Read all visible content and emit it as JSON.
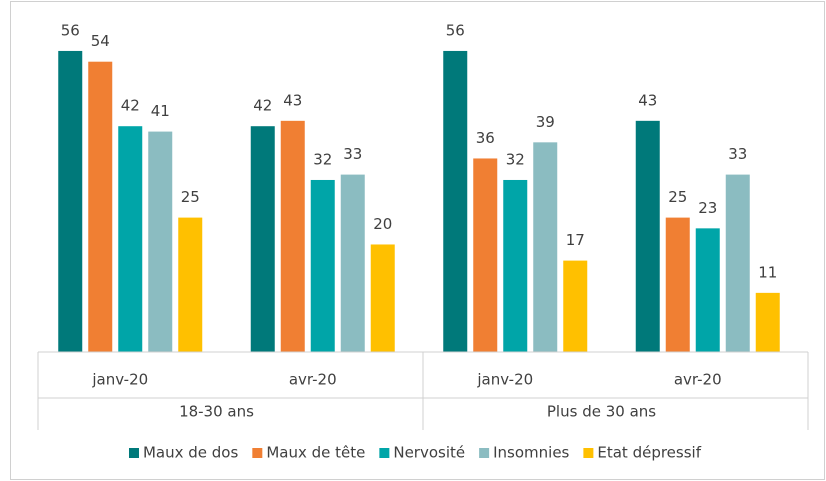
{
  "chart_data": {
    "type": "bar",
    "groups": [
      {
        "label": "18-30 ans",
        "categories": [
          "janv-20",
          "avr-20"
        ]
      },
      {
        "label": "Plus de 30 ans",
        "categories": [
          "janv-20",
          "avr-20"
        ]
      }
    ],
    "series": [
      {
        "name": "Maux de dos",
        "color": "#00797a",
        "values": [
          56,
          42,
          56,
          43
        ]
      },
      {
        "name": "Maux de tête",
        "color": "#f07f33",
        "values": [
          54,
          43,
          36,
          25
        ]
      },
      {
        "name": "Nervosité",
        "color": "#00a5a8",
        "values": [
          42,
          32,
          32,
          23
        ]
      },
      {
        "name": "Insomnies",
        "color": "#8bbcc1",
        "values": [
          41,
          33,
          39,
          33
        ]
      },
      {
        "name": "Etat dépressif",
        "color": "#ffc000",
        "values": [
          25,
          20,
          17,
          11
        ]
      }
    ],
    "ylim": [
      0,
      62.5
    ],
    "legend": "bottom"
  }
}
